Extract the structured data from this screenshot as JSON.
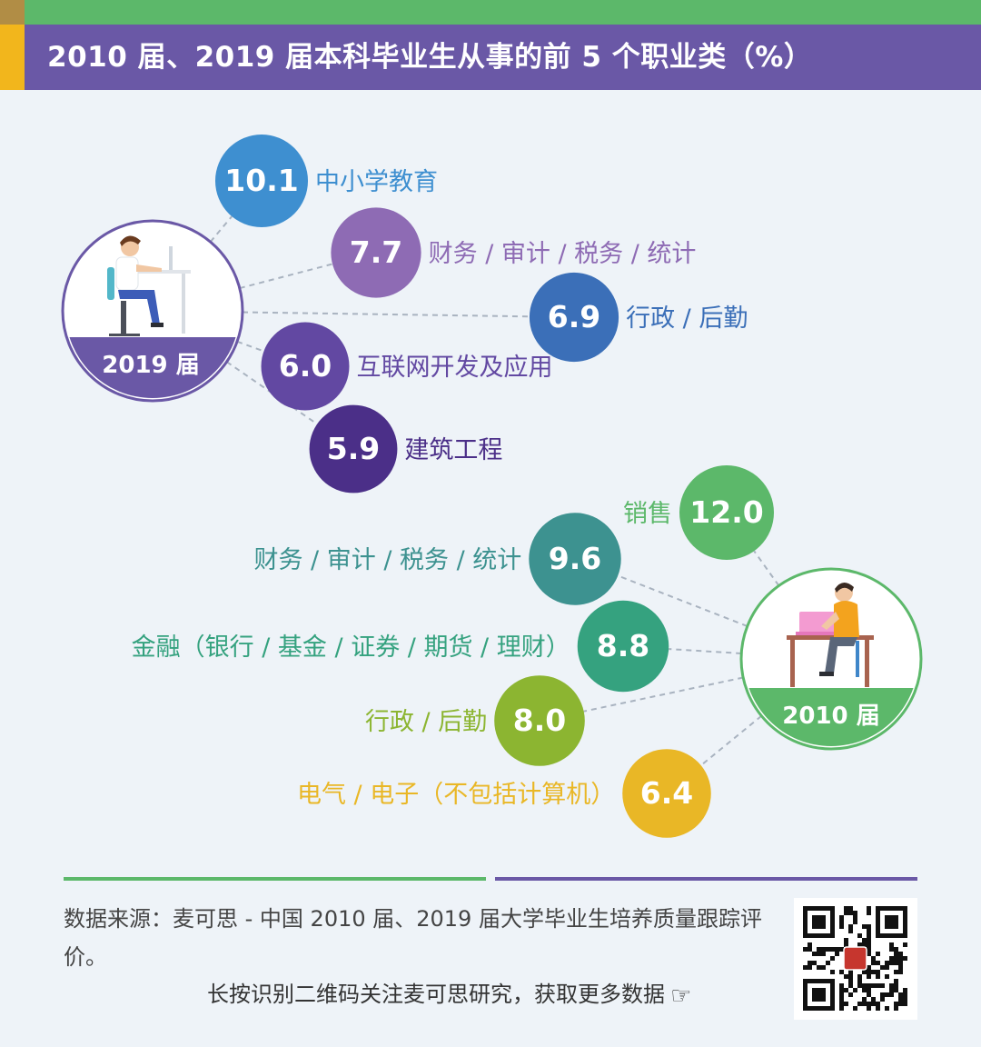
{
  "header": {
    "title": "2010 届、2019 届本科毕业生从事的前 5 个职业类（%）"
  },
  "chart_data": {
    "type": "bubble",
    "title": "2010 届、2019 届本科毕业生从事的前 5 个职业类（%）",
    "unit": "%",
    "groups": [
      {
        "name": "2019 届",
        "color": "#6a58a6",
        "items": [
          {
            "label": "中小学教育",
            "value": 10.1,
            "color": "#3e8fd0"
          },
          {
            "label": "财务 / 审计 / 税务 / 统计",
            "value": 7.7,
            "color": "#8e6bb4"
          },
          {
            "label": "行政 / 后勤",
            "value": 6.9,
            "color": "#3b6fb8"
          },
          {
            "label": "互联网开发及应用",
            "value": 6.0,
            "color": "#6248a2"
          },
          {
            "label": "建筑工程",
            "value": 5.9,
            "color": "#4b2f88"
          }
        ]
      },
      {
        "name": "2010 届",
        "color": "#5cb86a",
        "items": [
          {
            "label": "销售",
            "value": 12.0,
            "color": "#5cb86a"
          },
          {
            "label": "财务 / 审计 / 税务 / 统计",
            "value": 9.6,
            "color": "#3d9290"
          },
          {
            "label": "金融（银行 / 基金 / 证券 / 期货 / 理财）",
            "value": 8.8,
            "color": "#35a27f"
          },
          {
            "label": "行政 / 后勤",
            "value": 8.0,
            "color": "#8cb531"
          },
          {
            "label": "电气 / 电子（不包括计算机）",
            "value": 6.4,
            "color": "#e9b726"
          }
        ]
      }
    ]
  },
  "footer": {
    "source": "数据来源：麦可思 - 中国 2010 届、2019 届大学毕业生培养质量跟踪评价。",
    "cta": "长按识别二维码关注麦可思研究，获取更多数据",
    "cta_icon": "pointing-hand-icon"
  }
}
